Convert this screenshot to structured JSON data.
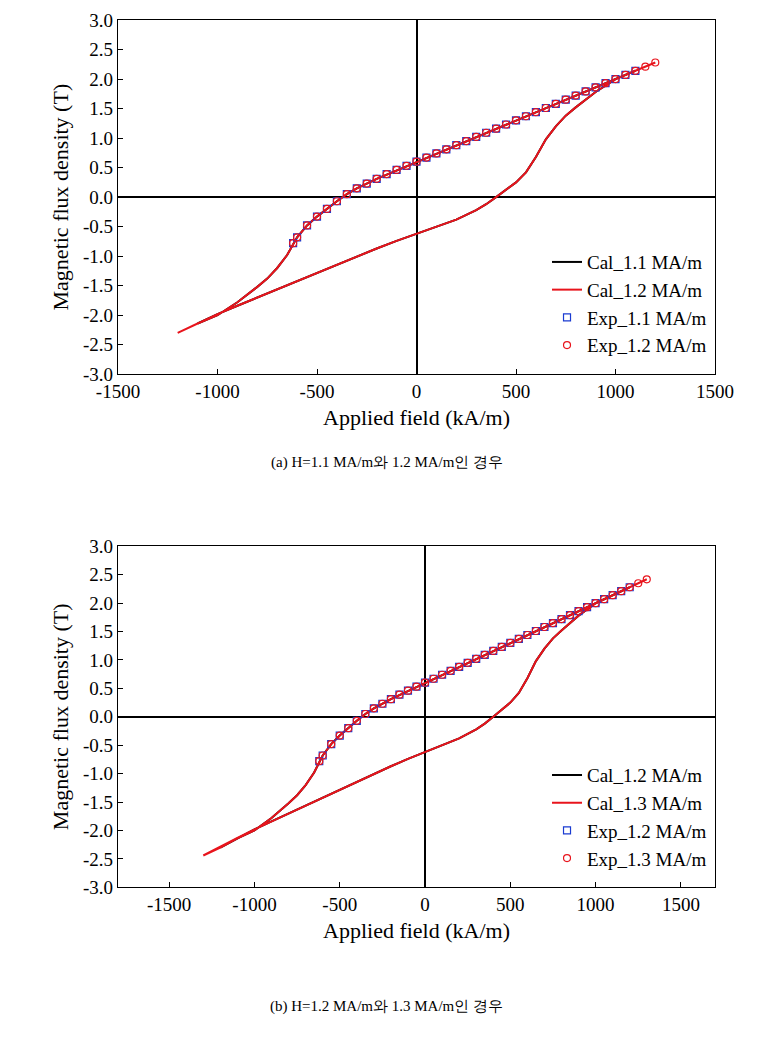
{
  "chart_data": [
    {
      "type": "scatter",
      "title": "(a) H=1.1 MA/m와 1.2 MA/m인 경우",
      "x_label": "Applied field (kA/m)",
      "y_label": "Magnetic flux density (T)",
      "xlim": [
        -1500,
        1500
      ],
      "xticks": [
        -1500,
        -1000,
        -500,
        0,
        500,
        1000,
        1500
      ],
      "ylim": [
        -3,
        3
      ],
      "yticks": [
        {
          "value": -3,
          "label": "-3.0"
        },
        -2.5,
        {
          "value": -2,
          "label": "-2.0"
        },
        -1.5,
        {
          "value": -1,
          "label": "-1.0"
        },
        -0.5,
        {
          "value": 0,
          "label": "0.0"
        },
        0.5,
        {
          "value": 1,
          "label": "1.0"
        },
        1.5,
        {
          "value": 2,
          "label": "2.0"
        },
        2.5,
        {
          "value": 3,
          "label": "3.0"
        }
      ],
      "grid": false,
      "legend": "lower right",
      "series": [
        {
          "name": "Cal_1.1 MA/m",
          "type": "line",
          "line_style": "solid",
          "color": "#000000",
          "x": [
            1100,
            1000,
            900,
            800,
            700,
            600,
            500,
            400,
            300,
            200,
            100,
            0,
            -100,
            -200,
            -300,
            -350,
            -400,
            -450,
            -500,
            -550,
            -600,
            -650,
            -700,
            -750,
            -800,
            -900,
            -1000,
            -1100,
            -1000,
            -900,
            -800,
            -700,
            -600,
            -500,
            -400,
            -300,
            -200,
            -100,
            0,
            100,
            200,
            300,
            350,
            400,
            450,
            500,
            550,
            600,
            650,
            700,
            750,
            800,
            900,
            1000,
            1100
          ],
          "values": [
            2.14,
            2.0,
            1.86,
            1.72,
            1.58,
            1.44,
            1.3,
            1.16,
            1.02,
            0.88,
            0.74,
            0.6,
            0.46,
            0.31,
            0.15,
            0.05,
            -0.07,
            -0.2,
            -0.33,
            -0.48,
            -0.68,
            -0.98,
            -1.2,
            -1.38,
            -1.52,
            -1.78,
            -2.0,
            -2.14,
            -1.98,
            -1.84,
            -1.7,
            -1.56,
            -1.42,
            -1.28,
            -1.14,
            -1.0,
            -0.87,
            -0.74,
            -0.62,
            -0.5,
            -0.38,
            -0.22,
            -0.12,
            0.0,
            0.12,
            0.25,
            0.42,
            0.68,
            0.98,
            1.2,
            1.38,
            1.52,
            1.78,
            2.0,
            2.14
          ]
        },
        {
          "name": "Cal_1.2 MA/m",
          "type": "line",
          "line_style": "solid",
          "color": "#e8141c",
          "x": [
            1200,
            1100,
            1000,
            900,
            800,
            700,
            600,
            500,
            400,
            300,
            200,
            100,
            0,
            -100,
            -200,
            -300,
            -350,
            -400,
            -450,
            -500,
            -550,
            -600,
            -650,
            -700,
            -750,
            -800,
            -900,
            -1000,
            -1100,
            -1200,
            -1100,
            -1000,
            -900,
            -800,
            -700,
            -600,
            -500,
            -400,
            -300,
            -200,
            -100,
            0,
            100,
            200,
            300,
            350,
            400,
            450,
            500,
            550,
            600,
            650,
            700,
            750,
            800,
            900,
            1000,
            1100,
            1200
          ],
          "values": [
            2.28,
            2.14,
            2.0,
            1.86,
            1.72,
            1.58,
            1.44,
            1.3,
            1.16,
            1.02,
            0.88,
            0.74,
            0.6,
            0.46,
            0.31,
            0.15,
            0.05,
            -0.07,
            -0.2,
            -0.33,
            -0.48,
            -0.68,
            -0.98,
            -1.2,
            -1.38,
            -1.52,
            -1.78,
            -2.0,
            -2.14,
            -2.3,
            -2.15,
            -1.98,
            -1.84,
            -1.7,
            -1.56,
            -1.42,
            -1.28,
            -1.14,
            -1.0,
            -0.87,
            -0.74,
            -0.62,
            -0.5,
            -0.38,
            -0.22,
            -0.12,
            0.0,
            0.12,
            0.25,
            0.42,
            0.68,
            0.98,
            1.2,
            1.38,
            1.52,
            1.78,
            2.0,
            2.14,
            2.28
          ]
        },
        {
          "name": "Exp_1.1 MA/m",
          "type": "scatter",
          "marker": "square-open",
          "color": "#1a3bd1",
          "x": [
            1100,
            1050,
            1000,
            950,
            900,
            850,
            800,
            750,
            700,
            650,
            600,
            550,
            500,
            450,
            400,
            350,
            300,
            250,
            200,
            150,
            100,
            50,
            0,
            -50,
            -100,
            -150,
            -200,
            -250,
            -300,
            -350,
            -400,
            -450,
            -500,
            -550,
            -600,
            -620
          ],
          "values": [
            2.14,
            2.07,
            2.0,
            1.93,
            1.86,
            1.79,
            1.72,
            1.65,
            1.58,
            1.51,
            1.44,
            1.37,
            1.3,
            1.23,
            1.16,
            1.09,
            1.02,
            0.95,
            0.88,
            0.81,
            0.74,
            0.67,
            0.6,
            0.53,
            0.46,
            0.39,
            0.31,
            0.23,
            0.15,
            0.05,
            -0.07,
            -0.2,
            -0.33,
            -0.48,
            -0.68,
            -0.78
          ]
        },
        {
          "name": "Exp_1.2 MA/m",
          "type": "scatter",
          "marker": "circle-open",
          "color": "#e8141c",
          "x": [
            1200,
            1150,
            1100,
            1050,
            1000,
            950,
            900,
            850,
            800,
            750,
            700,
            650,
            600,
            550,
            500,
            450,
            400,
            350,
            300,
            250,
            200,
            150,
            100,
            50,
            0,
            -50,
            -100,
            -150,
            -200,
            -250,
            -300,
            -350,
            -400,
            -450,
            -500,
            -550,
            -600,
            -620
          ],
          "values": [
            2.28,
            2.21,
            2.14,
            2.07,
            2.0,
            1.93,
            1.86,
            1.79,
            1.72,
            1.65,
            1.58,
            1.51,
            1.44,
            1.37,
            1.3,
            1.23,
            1.16,
            1.09,
            1.02,
            0.95,
            0.88,
            0.81,
            0.74,
            0.67,
            0.6,
            0.53,
            0.46,
            0.39,
            0.31,
            0.23,
            0.15,
            0.05,
            -0.07,
            -0.2,
            -0.33,
            -0.48,
            -0.68,
            -0.78
          ]
        }
      ]
    },
    {
      "type": "scatter",
      "title": "(b) H=1.2 MA/m와 1.3 MA/m인 경우",
      "x_label": "Applied field (kA/m)",
      "y_label": "Magnetic flux density (T)",
      "xlim": [
        -1800,
        1700
      ],
      "xticks": [
        -1500,
        -1000,
        -500,
        0,
        500,
        1000,
        1500
      ],
      "ylim": [
        -3,
        3
      ],
      "yticks": [
        {
          "value": -3,
          "label": "-3.0"
        },
        -2.5,
        {
          "value": -2,
          "label": "-2.0"
        },
        -1.5,
        {
          "value": -1,
          "label": "-1.0"
        },
        -0.5,
        {
          "value": 0,
          "label": "0.0"
        },
        0.5,
        {
          "value": 1,
          "label": "1.0"
        },
        1.5,
        {
          "value": 2,
          "label": "2.0"
        },
        2.5,
        {
          "value": 3,
          "label": "3.0"
        }
      ],
      "grid": false,
      "legend": "lower right",
      "series": [
        {
          "name": "Cal_1.2 MA/m",
          "type": "line",
          "line_style": "solid",
          "color": "#000000",
          "x": [
            1200,
            1100,
            1000,
            900,
            800,
            700,
            600,
            500,
            400,
            300,
            200,
            100,
            0,
            -100,
            -200,
            -300,
            -350,
            -400,
            -450,
            -500,
            -550,
            -600,
            -650,
            -700,
            -750,
            -800,
            -900,
            -1000,
            -1100,
            -1200,
            -1100,
            -1000,
            -900,
            -800,
            -700,
            -600,
            -500,
            -400,
            -300,
            -200,
            -100,
            0,
            100,
            200,
            300,
            350,
            400,
            450,
            500,
            550,
            600,
            650,
            700,
            750,
            800,
            900,
            1000,
            1100,
            1200
          ],
          "values": [
            2.28,
            2.14,
            2.0,
            1.86,
            1.72,
            1.58,
            1.44,
            1.3,
            1.16,
            1.02,
            0.88,
            0.74,
            0.6,
            0.46,
            0.31,
            0.15,
            0.05,
            -0.07,
            -0.2,
            -0.33,
            -0.48,
            -0.68,
            -0.98,
            -1.2,
            -1.38,
            -1.52,
            -1.78,
            -2.0,
            -2.14,
            -2.3,
            -2.15,
            -1.98,
            -1.84,
            -1.7,
            -1.56,
            -1.42,
            -1.28,
            -1.14,
            -1.0,
            -0.87,
            -0.74,
            -0.62,
            -0.5,
            -0.38,
            -0.22,
            -0.12,
            0.0,
            0.12,
            0.25,
            0.42,
            0.68,
            0.98,
            1.2,
            1.38,
            1.52,
            1.78,
            2.0,
            2.14,
            2.28
          ]
        },
        {
          "name": "Cal_1.3 MA/m",
          "type": "line",
          "line_style": "solid",
          "color": "#e8141c",
          "x": [
            1300,
            1200,
            1100,
            1000,
            900,
            800,
            700,
            600,
            500,
            400,
            300,
            200,
            100,
            0,
            -100,
            -200,
            -300,
            -350,
            -400,
            -450,
            -500,
            -550,
            -600,
            -650,
            -700,
            -750,
            -800,
            -900,
            -1000,
            -1100,
            -1200,
            -1300,
            -1200,
            -1100,
            -1000,
            -900,
            -800,
            -700,
            -600,
            -500,
            -400,
            -300,
            -200,
            -100,
            0,
            100,
            200,
            300,
            350,
            400,
            450,
            500,
            550,
            600,
            650,
            700,
            750,
            800,
            900,
            1000,
            1100,
            1200,
            1300
          ],
          "values": [
            2.42,
            2.28,
            2.14,
            2.0,
            1.86,
            1.72,
            1.58,
            1.44,
            1.3,
            1.16,
            1.02,
            0.88,
            0.74,
            0.6,
            0.46,
            0.31,
            0.15,
            0.05,
            -0.07,
            -0.2,
            -0.33,
            -0.48,
            -0.68,
            -0.98,
            -1.2,
            -1.38,
            -1.52,
            -1.78,
            -2.0,
            -2.14,
            -2.3,
            -2.44,
            -2.28,
            -2.13,
            -1.98,
            -1.84,
            -1.7,
            -1.56,
            -1.42,
            -1.28,
            -1.14,
            -1.0,
            -0.87,
            -0.74,
            -0.62,
            -0.5,
            -0.38,
            -0.22,
            -0.12,
            0.0,
            0.12,
            0.25,
            0.42,
            0.68,
            0.98,
            1.2,
            1.38,
            1.52,
            1.78,
            2.0,
            2.14,
            2.28,
            2.42
          ]
        },
        {
          "name": "Exp_1.2 MA/m",
          "type": "scatter",
          "marker": "square-open",
          "color": "#1a3bd1",
          "x": [
            1200,
            1150,
            1100,
            1050,
            1000,
            950,
            900,
            850,
            800,
            750,
            700,
            650,
            600,
            550,
            500,
            450,
            400,
            350,
            300,
            250,
            200,
            150,
            100,
            50,
            0,
            -50,
            -100,
            -150,
            -200,
            -250,
            -300,
            -350,
            -400,
            -450,
            -500,
            -550,
            -600,
            -620
          ],
          "values": [
            2.28,
            2.21,
            2.14,
            2.07,
            2.0,
            1.93,
            1.86,
            1.79,
            1.72,
            1.65,
            1.58,
            1.51,
            1.44,
            1.37,
            1.3,
            1.23,
            1.16,
            1.09,
            1.02,
            0.95,
            0.88,
            0.81,
            0.74,
            0.67,
            0.6,
            0.53,
            0.46,
            0.39,
            0.31,
            0.23,
            0.15,
            0.05,
            -0.07,
            -0.2,
            -0.33,
            -0.48,
            -0.68,
            -0.78
          ]
        },
        {
          "name": "Exp_1.3 MA/m",
          "type": "scatter",
          "marker": "circle-open",
          "color": "#e8141c",
          "x": [
            1300,
            1250,
            1200,
            1150,
            1100,
            1050,
            1000,
            950,
            900,
            850,
            800,
            750,
            700,
            650,
            600,
            550,
            500,
            450,
            400,
            350,
            300,
            250,
            200,
            150,
            100,
            50,
            0,
            -50,
            -100,
            -150,
            -200,
            -250,
            -300,
            -350,
            -400,
            -450,
            -500,
            -550,
            -600,
            -620
          ],
          "values": [
            2.42,
            2.35,
            2.28,
            2.21,
            2.14,
            2.07,
            2.0,
            1.93,
            1.86,
            1.79,
            1.72,
            1.65,
            1.58,
            1.51,
            1.44,
            1.37,
            1.3,
            1.23,
            1.16,
            1.09,
            1.02,
            0.95,
            0.88,
            0.81,
            0.74,
            0.67,
            0.6,
            0.53,
            0.46,
            0.39,
            0.31,
            0.23,
            0.15,
            0.05,
            -0.07,
            -0.2,
            -0.33,
            -0.48,
            -0.68,
            -0.78
          ]
        }
      ]
    }
  ]
}
